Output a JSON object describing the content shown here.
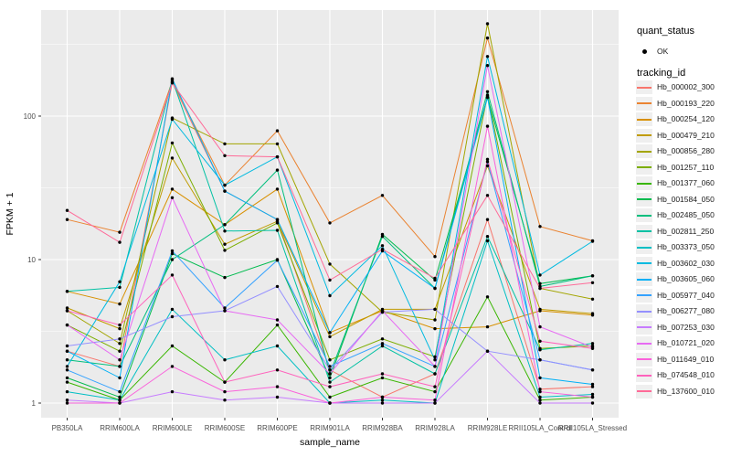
{
  "legend": {
    "quant_status_title": "quant_status",
    "quant_ok_label": "OK",
    "tracking_title": "tracking_id"
  },
  "chart_data": {
    "type": "line",
    "title": "",
    "xlabel": "sample_name",
    "ylabel": "FPKM + 1",
    "y_scale": "log10",
    "y_ticks": [
      1,
      10,
      100
    ],
    "y_tick_labels": [
      "1",
      "10",
      "100"
    ],
    "ylim_approx": [
      0.79,
      550
    ],
    "grid": "ggplot-grey-panel-white-gridlines",
    "legend_position": "right",
    "point_color": "#000000",
    "panel_color": "#EBEBEB",
    "grid_color": "#FFFFFF",
    "axis_text_color": "#4D4D4D",
    "categories": [
      "PB350LA",
      "RRIM600LA",
      "RRIM600LE",
      "RRIM600SE",
      "RRIM600PE",
      "RRIM901LA",
      "RRIM928BA",
      "RRIM928LA",
      "RRIM928LE",
      "RRII105LA_Control",
      "RRII105LA_Stressed"
    ],
    "quant_status": "OK",
    "series": [
      {
        "name": "Hb_000002_300",
        "color": "#F8766D",
        "values": [
          2.3,
          1.8,
          172,
          30,
          19,
          1.7,
          1.1,
          1.6,
          19,
          1.25,
          1.3
        ]
      },
      {
        "name": "Hb_000193_220",
        "color": "#EA8331",
        "values": [
          19,
          15.5,
          175,
          33,
          79,
          18,
          28,
          10.5,
          350,
          17,
          13.5
        ]
      },
      {
        "name": "Hb_000254_120",
        "color": "#D89000",
        "values": [
          6.0,
          4.9,
          31,
          17.5,
          31,
          3.1,
          4.4,
          3.3,
          3.4,
          4.4,
          4.1
        ]
      },
      {
        "name": "Hb_000479_210",
        "color": "#C09B00",
        "values": [
          4.6,
          3.3,
          51,
          12.8,
          18.5,
          2.9,
          4.5,
          4.5,
          45,
          4.5,
          4.2
        ]
      },
      {
        "name": "Hb_000856_280",
        "color": "#A3A500",
        "values": [
          4.4,
          2.6,
          97,
          64,
          64,
          9.3,
          4.3,
          3.8,
          440,
          6.3,
          5.3
        ]
      },
      {
        "name": "Hb_001257_110",
        "color": "#7CAE00",
        "values": [
          3.5,
          2.3,
          65,
          11.6,
          18,
          2.0,
          2.8,
          2.1,
          140,
          2.4,
          2.5
        ]
      },
      {
        "name": "Hb_001377_060",
        "color": "#39B600",
        "values": [
          1.4,
          1.05,
          2.5,
          1.4,
          3.5,
          1.1,
          1.5,
          1.2,
          5.5,
          1.05,
          1.1
        ]
      },
      {
        "name": "Hb_001584_050",
        "color": "#00BB4E",
        "values": [
          1.5,
          1.1,
          11,
          7.5,
          10,
          1.5,
          15,
          7.2,
          135,
          6.8,
          7.7
        ]
      },
      {
        "name": "Hb_002485_050",
        "color": "#00BF7D",
        "values": [
          2.0,
          1.8,
          10,
          17.5,
          42,
          1.6,
          14.5,
          6.3,
          148,
          6.5,
          7.7
        ]
      },
      {
        "name": "Hb_002811_250",
        "color": "#00C1A3",
        "values": [
          6.0,
          6.4,
          180,
          15.8,
          16,
          1.4,
          2.5,
          1.6,
          14.5,
          2.35,
          2.6
        ]
      },
      {
        "name": "Hb_003373_050",
        "color": "#00BFC4",
        "values": [
          1.2,
          1.05,
          4.5,
          2.0,
          2.5,
          1.0,
          1.05,
          1.0,
          13.5,
          1.1,
          1.15
        ]
      },
      {
        "name": "Hb_003602_030",
        "color": "#00BAE0",
        "values": [
          1.8,
          7.0,
          95,
          33,
          52,
          5.6,
          12.5,
          2.0,
          260,
          7.8,
          13.4
        ]
      },
      {
        "name": "Hb_003605_060",
        "color": "#00B0F6",
        "values": [
          2.3,
          1.5,
          182,
          30,
          19,
          3.1,
          11.5,
          6.3,
          135,
          1.5,
          1.35
        ]
      },
      {
        "name": "Hb_005977_040",
        "color": "#35A2FF",
        "values": [
          1.7,
          1.2,
          11.5,
          4.6,
          9.9,
          1.8,
          2.6,
          1.8,
          48,
          2.0,
          1.7
        ]
      },
      {
        "name": "Hb_006277_080",
        "color": "#9590FF",
        "values": [
          2.5,
          2.8,
          4.0,
          4.4,
          6.5,
          1.7,
          4.3,
          4.5,
          2.3,
          2.0,
          1.7
        ]
      },
      {
        "name": "Hb_007253_030",
        "color": "#C77CFF",
        "values": [
          1.05,
          1.0,
          1.2,
          1.05,
          1.1,
          1.0,
          1.0,
          1.0,
          2.3,
          1.0,
          1.0
        ]
      },
      {
        "name": "Hb_010721_020",
        "color": "#E76BF3",
        "values": [
          3.5,
          2.0,
          27,
          4.4,
          3.8,
          1.6,
          4.4,
          1.8,
          225,
          3.4,
          2.45
        ]
      },
      {
        "name": "Hb_011649_010",
        "color": "#FA62DB",
        "values": [
          1.0,
          1.0,
          1.8,
          1.2,
          1.3,
          1.0,
          1.1,
          1.05,
          85,
          1.2,
          1.1
        ]
      },
      {
        "name": "Hb_074548_010",
        "color": "#FF62BC",
        "values": [
          4.4,
          3.5,
          7.8,
          1.4,
          1.7,
          1.3,
          1.6,
          1.3,
          50,
          2.7,
          2.4
        ]
      },
      {
        "name": "Hb_137600_010",
        "color": "#FF6A98",
        "values": [
          22,
          13.2,
          170,
          53,
          52,
          7.2,
          11.8,
          7.4,
          28,
          6.3,
          6.9
        ]
      }
    ]
  }
}
